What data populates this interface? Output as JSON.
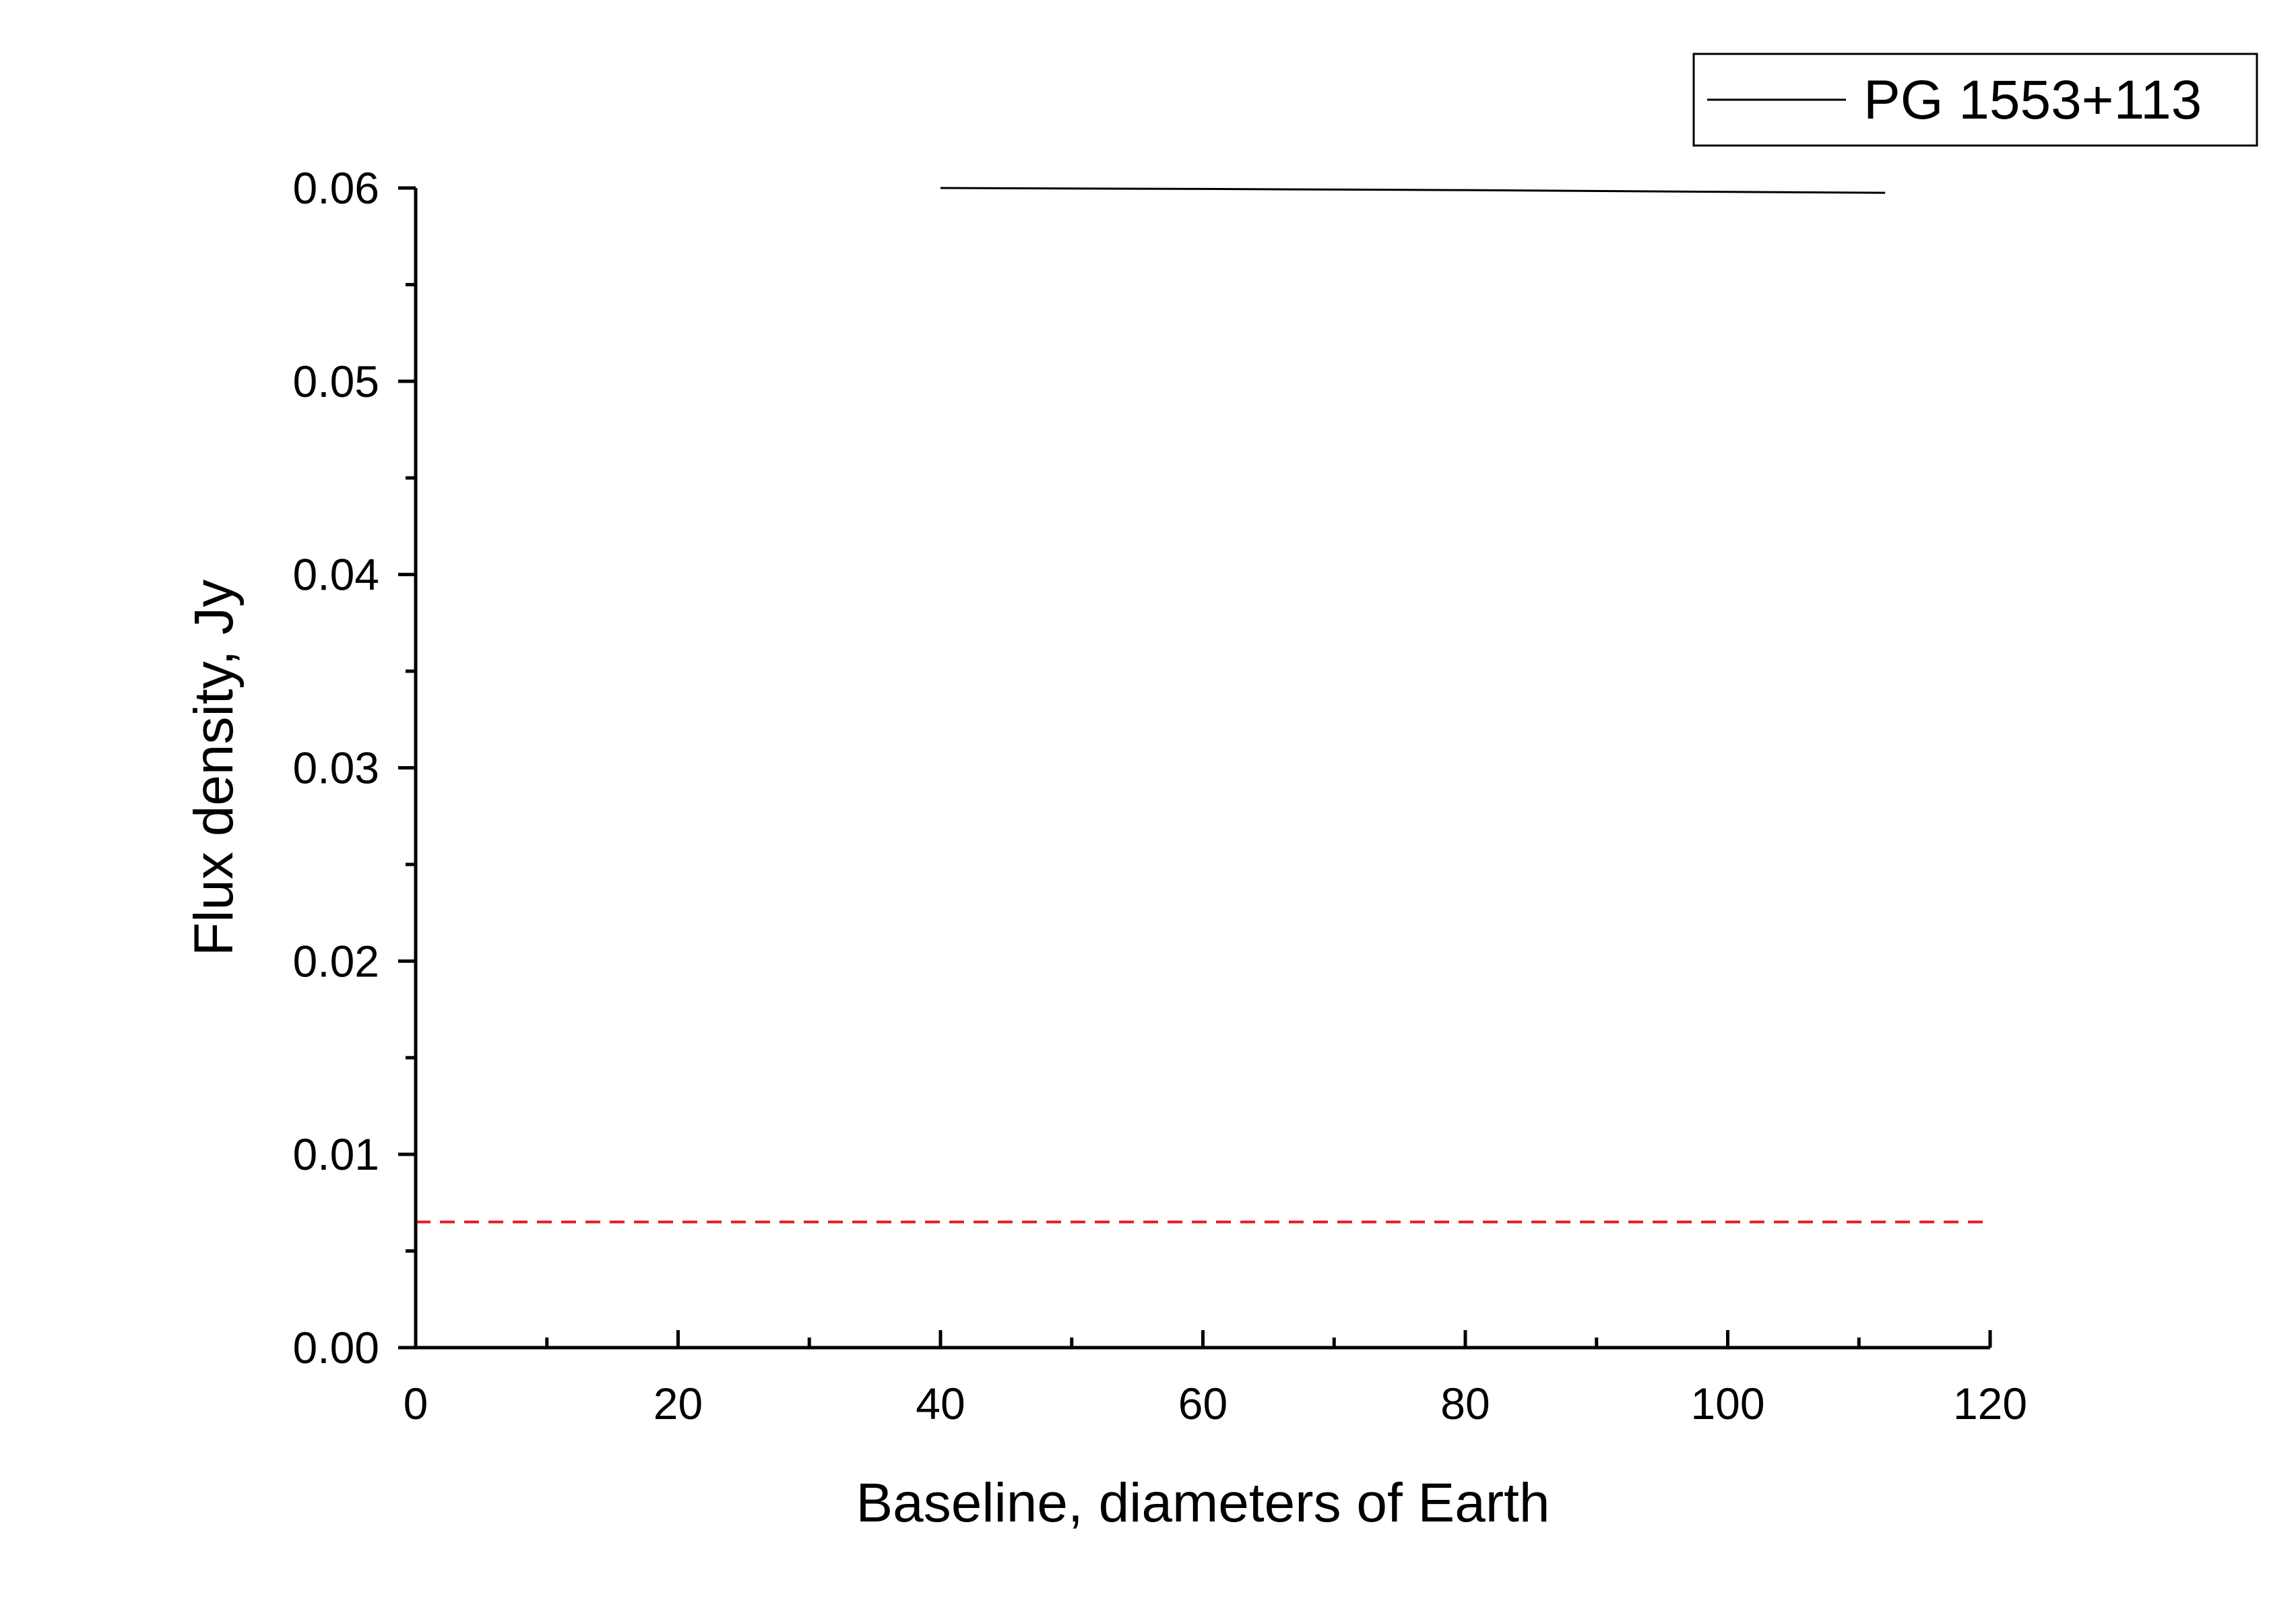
{
  "chart_data": {
    "type": "line",
    "title": "",
    "xlabel": "Baseline, diameters of Earth",
    "ylabel": "Flux density, Jy",
    "xlim": [
      0,
      120
    ],
    "ylim": [
      0,
      0.06
    ],
    "x_major_ticks": [
      0,
      20,
      40,
      60,
      80,
      100,
      120
    ],
    "x_tick_labels": [
      "0",
      "20",
      "40",
      "60",
      "80",
      "100",
      "120"
    ],
    "x_minor_ticks": [
      10,
      30,
      50,
      70,
      90,
      110
    ],
    "y_major_ticks": [
      0,
      0.01,
      0.02,
      0.03,
      0.04,
      0.05,
      0.06
    ],
    "y_tick_labels": [
      "0.00",
      "0.01",
      "0.02",
      "0.03",
      "0.04",
      "0.05",
      "0.06"
    ],
    "y_minor_ticks": [
      0.005,
      0.015,
      0.025,
      0.035,
      0.045,
      0.055
    ],
    "grid": false,
    "legend_position": "top-right",
    "series": [
      {
        "name": "PG 1553+113",
        "color": "#000000",
        "style": "solid",
        "x": [
          40,
          60,
          80,
          100,
          112
        ],
        "y": [
          0.06,
          0.05995,
          0.05989,
          0.0598,
          0.05975
        ]
      },
      {
        "color": "#e8191f",
        "style": "dashed",
        "x": [
          0,
          120
        ],
        "y": [
          0.0065,
          0.0065
        ]
      }
    ]
  }
}
